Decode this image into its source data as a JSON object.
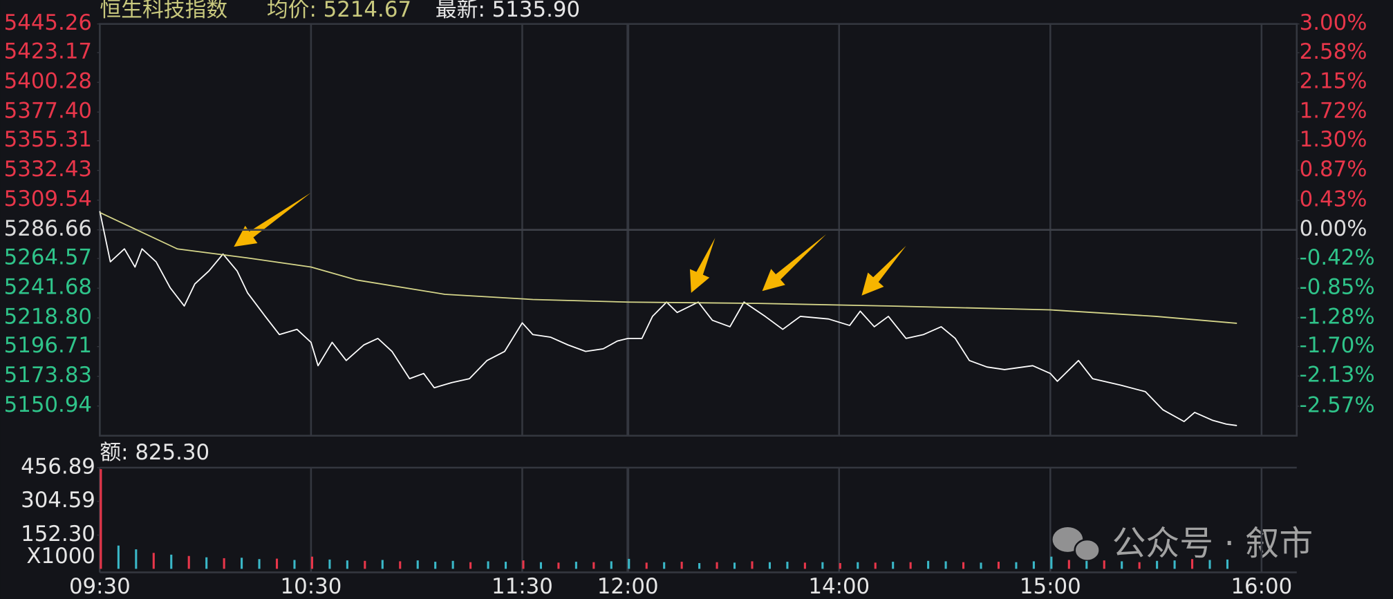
{
  "chart_data": [
    {
      "type": "line",
      "title": "恒生科技指数",
      "annotations": [
        "均价: 5214.67",
        "最新: 5135.90"
      ],
      "xlim": [
        0,
        340
      ],
      "xticks": [
        {
          "value": 0,
          "label": "09:30"
        },
        {
          "value": 60,
          "label": "10:30"
        },
        {
          "value": 120,
          "label": "11:30"
        },
        {
          "value": 150,
          "label": "12:00"
        },
        {
          "value": 210,
          "label": "14:00"
        },
        {
          "value": 270,
          "label": "15:00"
        },
        {
          "value": 330,
          "label": "16:00"
        }
      ],
      "ylim": [
        5128.06,
        5445.26
      ],
      "yticks": [
        5445.26,
        5423.17,
        5400.28,
        {
          "value": 5377.4,
          "label": "5377.40"
        },
        5355.31,
        5332.43,
        5309.54,
        5286.66,
        5264.57,
        5241.68,
        {
          "value": 5218.8,
          "label": "5218.80"
        },
        5196.71,
        5173.83,
        5150.94
      ],
      "y2lim": [
        -3.0,
        3.0
      ],
      "y2ticks": [
        {
          "value": 3.0,
          "label": "3.00%"
        },
        {
          "value": 2.58,
          "label": "2.58%"
        },
        {
          "value": 2.15,
          "label": "2.15%"
        },
        {
          "value": 1.72,
          "label": "1.72%"
        },
        {
          "value": 1.3,
          "label": "1.30%"
        },
        {
          "value": 0.87,
          "label": "0.87%"
        },
        {
          "value": 0.43,
          "label": "0.43%"
        },
        {
          "value": 0.0,
          "label": "0.00%"
        },
        {
          "value": -0.42,
          "label": "-0.42%"
        },
        {
          "value": -0.85,
          "label": "-0.85%"
        },
        {
          "value": -1.28,
          "label": "-1.28%"
        },
        {
          "value": -1.7,
          "label": "-1.70%"
        },
        {
          "value": -2.13,
          "label": "-2.13%"
        },
        {
          "value": -2.57,
          "label": "-2.57%"
        }
      ],
      "up_color": "#e8364a",
      "down_color": "#2fc48a",
      "flat_color": "#dddddd",
      "series": [
        {
          "color": "#ffffff",
          "x": [
            0,
            3,
            7,
            10,
            12,
            16,
            20,
            24,
            27,
            31,
            35,
            39,
            42,
            47,
            51,
            56,
            60,
            62,
            66,
            70,
            75,
            79,
            83,
            88,
            92,
            95,
            100,
            105,
            110,
            115,
            120,
            123,
            128,
            133,
            138,
            143,
            147,
            150,
            154,
            157,
            161,
            164,
            170,
            174,
            179,
            183,
            189,
            194,
            199,
            207,
            213,
            216,
            220,
            224,
            229,
            234,
            239,
            243,
            247,
            252,
            257,
            265,
            270,
            272,
            278,
            282,
            290,
            297,
            302,
            308,
            311,
            316,
            320,
            323
          ],
          "values": [
            5301,
            5262,
            5272,
            5258,
            5272,
            5262,
            5242,
            5228,
            5245,
            5255,
            5268,
            5255,
            5238,
            5220,
            5206,
            5210,
            5200,
            5182,
            5200,
            5186,
            5198,
            5203,
            5193,
            5172,
            5176,
            5165,
            5169,
            5172,
            5186,
            5193,
            5215,
            5206,
            5204,
            5198,
            5193,
            5195,
            5201,
            5203,
            5203,
            5220,
            5231,
            5223,
            5231,
            5217,
            5212,
            5231,
            5220,
            5210,
            5220,
            5218,
            5213,
            5224,
            5212,
            5220,
            5203,
            5206,
            5212,
            5203,
            5186,
            5181,
            5179,
            5182,
            5176,
            5170,
            5186,
            5172,
            5167,
            5162,
            5148,
            5139,
            5146,
            5140,
            5137,
            5135.9
          ]
        },
        {
          "color": "#d6d68a",
          "x": [
            0,
            22,
            42,
            60,
            73,
            98,
            123,
            150,
            187,
            224,
            270,
            300,
            323
          ],
          "values": [
            5300,
            5272,
            5265,
            5258,
            5248,
            5237,
            5233,
            5231,
            5230,
            5228,
            5225,
            5220,
            5214.67
          ]
        }
      ]
    },
    {
      "type": "bar",
      "title": "额: 825.30",
      "y_unit": "X1000",
      "xlim": [
        0,
        340
      ],
      "ylim": [
        0,
        565
      ],
      "yticks": [
        456.89,
        304.59,
        {
          "value": 152.3,
          "label": "152.30"
        }
      ],
      "series": [
        {
          "x": [
            0,
            5,
            10,
            15,
            20,
            25,
            30,
            35,
            40,
            45,
            50,
            55,
            60,
            65,
            70,
            75,
            80,
            85,
            90,
            95,
            100,
            105,
            110,
            115,
            120,
            125,
            130,
            135,
            140,
            145,
            150,
            155,
            160,
            165,
            170,
            175,
            180,
            185,
            190,
            195,
            200,
            205,
            210,
            215,
            220,
            225,
            230,
            235,
            240,
            245,
            250,
            255,
            260,
            265,
            270,
            275,
            280,
            285,
            290,
            295,
            300,
            305,
            310,
            315,
            320
          ],
          "values": [
            450,
            105,
            88,
            72,
            64,
            58,
            52,
            48,
            50,
            44,
            46,
            40,
            55,
            42,
            38,
            36,
            40,
            34,
            38,
            32,
            36,
            30,
            34,
            32,
            38,
            30,
            28,
            32,
            30,
            34,
            45,
            28,
            30,
            32,
            26,
            30,
            28,
            34,
            30,
            32,
            28,
            30,
            26,
            30,
            28,
            32,
            30,
            36,
            34,
            30,
            28,
            32,
            30,
            34,
            55,
            40,
            36,
            38,
            34,
            30,
            36,
            38,
            44,
            40,
            42
          ],
          "colors": [
            "#e8364a",
            "#3ab8c8",
            "#3ab8c8",
            "#e8364a",
            "#3ab8c8",
            "#e8364a",
            "#3ab8c8",
            "#e8364a",
            "#3ab8c8",
            "#3ab8c8",
            "#e8364a",
            "#3ab8c8",
            "#e8364a",
            "#3ab8c8",
            "#3ab8c8",
            "#e8364a",
            "#3ab8c8",
            "#e8364a",
            "#3ab8c8",
            "#3ab8c8",
            "#3ab8c8",
            "#e8364a",
            "#3ab8c8",
            "#3ab8c8",
            "#e8364a",
            "#3ab8c8",
            "#e8364a",
            "#3ab8c8",
            "#e8364a",
            "#3ab8c8",
            "#3ab8c8",
            "#e8364a",
            "#3ab8c8",
            "#e8364a",
            "#3ab8c8",
            "#e8364a",
            "#3ab8c8",
            "#e8364a",
            "#3ab8c8",
            "#3ab8c8",
            "#e8364a",
            "#3ab8c8",
            "#e8364a",
            "#3ab8c8",
            "#e8364a",
            "#3ab8c8",
            "#e8364a",
            "#3ab8c8",
            "#3ab8c8",
            "#e8364a",
            "#3ab8c8",
            "#e8364a",
            "#3ab8c8",
            "#3ab8c8",
            "#3ab8c8",
            "#e8364a",
            "#3ab8c8",
            "#e8364a",
            "#3ab8c8",
            "#e8364a",
            "#3ab8c8",
            "#3ab8c8",
            "#e8364a",
            "#3ab8c8",
            "#3ab8c8"
          ]
        }
      ]
    }
  ],
  "watermark": "公众号 · 叙市"
}
